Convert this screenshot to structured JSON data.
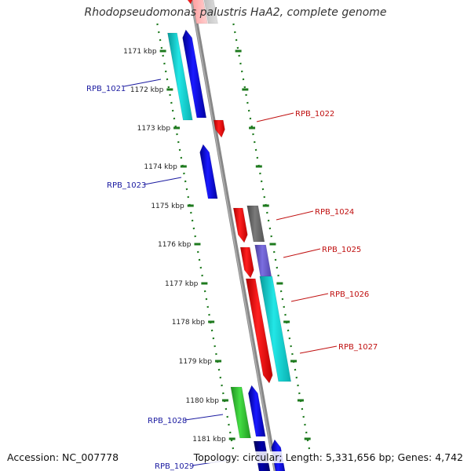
{
  "title": "Rhodopseudomonas palustris HaA2, complete genome",
  "footer": {
    "accession": "Accession: NC_007778",
    "summary": "Topology: circular; Length: 5,331,656 bp; Genes: 4,742"
  },
  "colors": {
    "backbone": "#888888",
    "ticks": "#1e7a1e",
    "label_left": "#1a1aa0",
    "label_right": "#c01010",
    "red": "#ee0000",
    "blue": "#0000dd",
    "cyan": "#11cccc",
    "dark_gray": "#666666",
    "purple": "#6a5acd",
    "green": "#33bb33",
    "navy": "#000088",
    "pink": "#ffaaaa",
    "light_gray": "#cccccc"
  },
  "kbp_labels": [
    "1171 kbp",
    "1172 kbp",
    "1173 kbp",
    "1174 kbp",
    "1175 kbp",
    "1176 kbp",
    "1177 kbp",
    "1178 kbp",
    "1179 kbp",
    "1180 kbp",
    "1181 kbp"
  ],
  "genes": [
    {
      "name": "RPB_1021",
      "side": "left"
    },
    {
      "name": "RPB_1022",
      "side": "right"
    },
    {
      "name": "RPB_1023",
      "side": "left"
    },
    {
      "name": "RPB_1024",
      "side": "right"
    },
    {
      "name": "RPB_1025",
      "side": "right"
    },
    {
      "name": "RPB_1026",
      "side": "right"
    },
    {
      "name": "RPB_1027",
      "side": "right"
    },
    {
      "name": "RPB_1028",
      "side": "left"
    },
    {
      "name": "RPB_1029",
      "side": "left"
    }
  ]
}
